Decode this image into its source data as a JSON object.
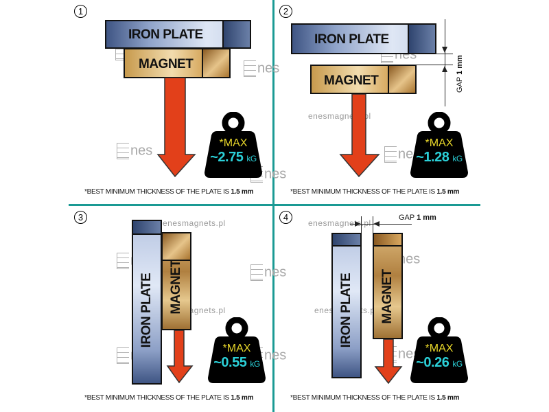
{
  "colors": {
    "teal": "#1a9a94",
    "arrow": "#e2401a",
    "weight": "#000000",
    "max_text": "#e8d72a",
    "value_text": "#2bd0d8"
  },
  "watermark": {
    "url": "enesmagnets.pl",
    "logo_text": "nes"
  },
  "footnote": {
    "text": "*BEST MINIMUM THICKNESS OF THE PLATE IS ",
    "value": "1.5 mm"
  },
  "panels": [
    {
      "number": "1",
      "iron_label": "IRON PLATE",
      "magnet_label": "MAGNET",
      "max_label": "*MAX",
      "value": "~2.75",
      "unit": "kG"
    },
    {
      "number": "2",
      "iron_label": "IRON PLATE",
      "magnet_label": "MAGNET",
      "max_label": "*MAX",
      "value": "~1.28",
      "unit": "kG",
      "gap_label": "GAP",
      "gap_value": "1 mm"
    },
    {
      "number": "3",
      "iron_label": "IRON  PLATE",
      "magnet_label": "MAGNET",
      "max_label": "*MAX",
      "value": "~0.55",
      "unit": "kG"
    },
    {
      "number": "4",
      "iron_label": "IRON PLATE",
      "magnet_label": "MAGNET",
      "max_label": "*MAX",
      "value": "~0.26",
      "unit": "kG",
      "gap_label": "GAP",
      "gap_value": "1 mm"
    }
  ]
}
